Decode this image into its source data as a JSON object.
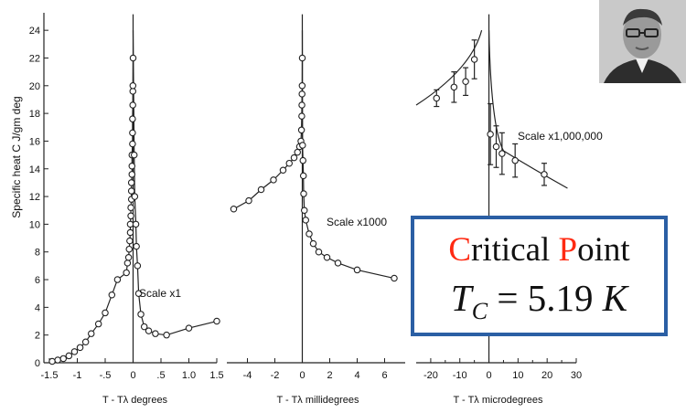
{
  "figure": {
    "box": {
      "critical_prefix": "C",
      "critical_rest": "ritical ",
      "point_prefix": "P",
      "point_rest": "oint",
      "accent_color": "#ff2a12",
      "border_color": "#2b5fa4",
      "tc_symbol": "T",
      "tc_sub": "C",
      "tc_eq": " = 5.19 ",
      "tc_unit": "K"
    },
    "photo_alt": "portrait"
  },
  "chart_data": [
    {
      "type": "scatter",
      "ylabel": "Specific heat C  J/gm deg",
      "ytick_labels": [
        "0",
        "2",
        "4",
        "6",
        "8",
        "10",
        "12",
        "14",
        "16",
        "18",
        "20",
        "22",
        "24"
      ],
      "ylim": [
        0,
        25
      ],
      "xlabel": "T - Tλ  degrees",
      "xlim": [
        -1.5,
        1.5
      ],
      "xtick_labels": [
        "-1.5",
        "-1",
        "-.5",
        "0",
        ".5",
        "1.0",
        "1.5"
      ],
      "xtick_values": [
        -1.5,
        -1,
        -0.5,
        0,
        0.5,
        1.0,
        1.5
      ],
      "annotation": "Scale x1",
      "points": [
        [
          -1.45,
          0.1
        ],
        [
          -1.35,
          0.2
        ],
        [
          -1.25,
          0.3
        ],
        [
          -1.15,
          0.5
        ],
        [
          -1.05,
          0.8
        ],
        [
          -0.95,
          1.1
        ],
        [
          -0.85,
          1.5
        ],
        [
          -0.75,
          2.1
        ],
        [
          -0.62,
          2.8
        ],
        [
          -0.5,
          3.6
        ],
        [
          -0.38,
          4.9
        ],
        [
          -0.28,
          6.0
        ],
        [
          -0.12,
          6.5
        ],
        [
          -0.1,
          7.2
        ],
        [
          -0.08,
          7.6
        ],
        [
          -0.07,
          8.2
        ],
        [
          -0.06,
          8.8
        ],
        [
          -0.05,
          9.4
        ],
        [
          -0.05,
          10.0
        ],
        [
          -0.04,
          10.6
        ],
        [
          -0.04,
          11.2
        ],
        [
          -0.03,
          11.8
        ],
        [
          -0.03,
          12.4
        ],
        [
          -0.03,
          13.0
        ],
        [
          -0.02,
          13.6
        ],
        [
          -0.02,
          14.2
        ],
        [
          -0.02,
          15.0
        ],
        [
          -0.01,
          15.8
        ],
        [
          -0.01,
          16.6
        ],
        [
          -0.01,
          17.6
        ],
        [
          -0.005,
          18.6
        ],
        [
          -0.004,
          19.6
        ],
        [
          -0.003,
          20.0
        ],
        [
          0,
          22.0
        ],
        [
          0.02,
          15.0
        ],
        [
          0.03,
          12.0
        ],
        [
          0.05,
          10.0
        ],
        [
          0.06,
          8.4
        ],
        [
          0.08,
          7.0
        ],
        [
          0.1,
          5.0
        ],
        [
          0.14,
          3.5
        ],
        [
          0.2,
          2.6
        ],
        [
          0.28,
          2.3
        ],
        [
          0.4,
          2.1
        ],
        [
          0.6,
          2.0
        ],
        [
          1.0,
          2.5
        ],
        [
          1.5,
          3.0
        ]
      ]
    },
    {
      "type": "scatter",
      "xlabel": "T - Tλ  millidegrees",
      "xlim": [
        -5.5,
        7.5
      ],
      "xtick_labels": [
        "-4",
        "-2",
        "0",
        "2",
        "4",
        "6"
      ],
      "xtick_values": [
        -4,
        -2,
        0,
        2,
        4,
        6
      ],
      "annotation": "Scale x1000",
      "points": [
        [
          -5.0,
          11.1
        ],
        [
          -3.9,
          11.7
        ],
        [
          -3.0,
          12.5
        ],
        [
          -2.1,
          13.2
        ],
        [
          -1.4,
          13.9
        ],
        [
          -0.95,
          14.4
        ],
        [
          -0.6,
          14.8
        ],
        [
          -0.35,
          15.2
        ],
        [
          -0.2,
          15.6
        ],
        [
          -0.1,
          16.0
        ],
        [
          -0.06,
          16.8
        ],
        [
          -0.04,
          17.8
        ],
        [
          -0.03,
          18.6
        ],
        [
          -0.02,
          19.4
        ],
        [
          -0.01,
          20.0
        ],
        [
          0,
          22.0
        ],
        [
          0.02,
          15.7
        ],
        [
          0.05,
          14.6
        ],
        [
          0.08,
          13.5
        ],
        [
          0.1,
          12.2
        ],
        [
          0.15,
          11.0
        ],
        [
          0.25,
          10.3
        ],
        [
          0.5,
          9.3
        ],
        [
          0.8,
          8.6
        ],
        [
          1.2,
          8.0
        ],
        [
          1.8,
          7.6
        ],
        [
          2.6,
          7.2
        ],
        [
          4.0,
          6.7
        ],
        [
          6.7,
          6.1
        ]
      ]
    },
    {
      "type": "scatter",
      "xlabel": "T - Tλ  microdegrees",
      "xlim": [
        -25,
        30
      ],
      "xtick_labels": [
        "-20",
        "-10",
        "0",
        "10",
        "20",
        "30"
      ],
      "xtick_values": [
        -20,
        -10,
        0,
        10,
        20,
        30
      ],
      "minor_xtick_values": [
        -15,
        -5,
        5,
        15,
        25
      ],
      "annotation": "Scale x1,000,000",
      "points": [
        [
          -18,
          19.1,
          0.6
        ],
        [
          -12,
          19.9,
          1.1
        ],
        [
          -8,
          20.3,
          1.0
        ],
        [
          -5,
          21.9,
          1.4
        ],
        [
          0.5,
          16.5,
          2.2
        ],
        [
          2.5,
          15.6,
          1.5
        ],
        [
          4.5,
          15.1,
          1.5
        ],
        [
          9,
          14.6,
          1.2
        ],
        [
          19,
          13.6,
          0.8
        ]
      ]
    }
  ]
}
